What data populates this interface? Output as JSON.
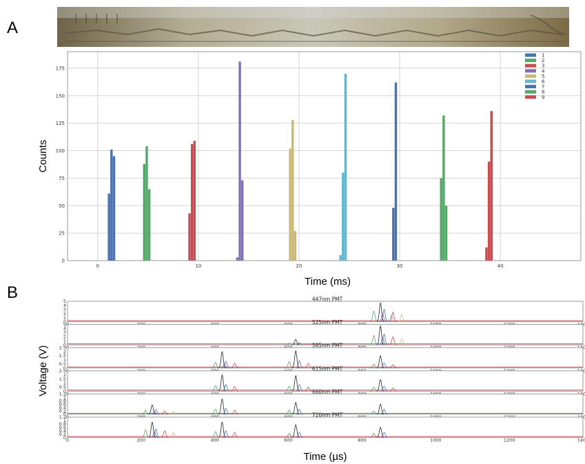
{
  "labels": {
    "panel_a": "A",
    "panel_b": "B"
  },
  "chart_data": [
    {
      "type": "bar",
      "panel": "A",
      "xlabel": "Time (ms)",
      "ylabel": "Counts",
      "xlim": [
        -3,
        48
      ],
      "ylim": [
        0,
        190
      ],
      "xticks": [
        0,
        10,
        20,
        30,
        40
      ],
      "yticks": [
        0,
        25,
        50,
        75,
        100,
        125,
        150,
        175
      ],
      "grid": true,
      "legend_position": "top-right",
      "bin_width": 0.25,
      "series": [
        {
          "name": "1",
          "color": "#4c72b0",
          "x": [
            1.0,
            1.25,
            1.5
          ],
          "values": [
            61,
            101,
            95
          ]
        },
        {
          "name": "2",
          "color": "#55a868",
          "x": [
            4.5,
            4.75,
            5.0
          ],
          "values": [
            88,
            104,
            65
          ]
        },
        {
          "name": "3",
          "color": "#c44e52",
          "x": [
            9.0,
            9.25,
            9.5
          ],
          "values": [
            43,
            106,
            109
          ]
        },
        {
          "name": "4",
          "color": "#8172b2",
          "x": [
            13.75,
            14.0,
            14.25
          ],
          "values": [
            3,
            181,
            73
          ]
        },
        {
          "name": "5",
          "color": "#ccb974",
          "x": [
            19.0,
            19.25,
            19.5
          ],
          "values": [
            102,
            128,
            27
          ]
        },
        {
          "name": "6",
          "color": "#64b5cd",
          "x": [
            24.0,
            24.25,
            24.5
          ],
          "values": [
            5,
            80,
            170
          ]
        },
        {
          "name": "7",
          "color": "#4c72b0",
          "x": [
            29.25,
            29.5
          ],
          "values": [
            48,
            162
          ]
        },
        {
          "name": "8",
          "color": "#55a868",
          "x": [
            34.0,
            34.25,
            34.5
          ],
          "values": [
            75,
            132,
            50
          ]
        },
        {
          "name": "9",
          "color": "#c44e52",
          "x": [
            38.5,
            38.75,
            39.0
          ],
          "values": [
            12,
            90,
            136
          ]
        }
      ]
    },
    {
      "type": "line",
      "panel": "B",
      "xlabel": "Time (µs)",
      "ylabel": "Voltage (V)",
      "xlim": [
        0,
        1400
      ],
      "xticks": [
        0,
        200,
        400,
        600,
        800,
        1000,
        1200,
        1400
      ],
      "series_colors": [
        "#4c72b0",
        "#55a868",
        "#c44e52",
        "#8172b2",
        "#ccb974",
        "#64b5cd",
        "#222222"
      ],
      "subplots": [
        {
          "title": "447nm PMT",
          "ylim": [
            0,
            5
          ],
          "yticks": [
            0,
            1,
            2,
            3,
            4,
            5
          ],
          "groups": [
            {
              "x": 850,
              "peak": 4.6,
              "others": [
                3.0,
                2.6,
                2.3,
                2.0,
                1.8,
                1.6
              ]
            }
          ]
        },
        {
          "title": "525nm PMT",
          "ylim": [
            0,
            5
          ],
          "yticks": [
            0,
            1,
            2,
            3,
            4,
            5
          ],
          "groups": [
            {
              "x": 620,
              "peak": 1.3,
              "others": [
                0.5,
                0.4,
                0.3
              ]
            },
            {
              "x": 850,
              "peak": 4.6,
              "others": [
                2.6,
                2.3,
                2.0,
                1.8,
                1.5
              ]
            }
          ]
        },
        {
          "title": "585nm PMT",
          "ylim": [
            0,
            2.5
          ],
          "yticks": [
            0.0,
            0.5,
            1.0,
            1.5,
            2.0,
            2.5
          ],
          "groups": [
            {
              "x": 420,
              "peak": 2.0,
              "others": [
                0.8,
                0.7,
                0.6,
                0.5
              ]
            },
            {
              "x": 620,
              "peak": 2.1,
              "others": [
                0.9,
                0.8,
                0.6
              ]
            },
            {
              "x": 850,
              "peak": 1.5,
              "others": [
                0.6,
                0.5,
                0.4
              ]
            }
          ]
        },
        {
          "title": "615nm PMT",
          "ylim": [
            0,
            2.5
          ],
          "yticks": [
            0.0,
            0.5,
            1.0,
            1.5,
            2.0,
            2.5
          ],
          "groups": [
            {
              "x": 420,
              "peak": 2.0,
              "others": [
                0.8,
                0.7,
                0.6
              ]
            },
            {
              "x": 620,
              "peak": 1.9,
              "others": [
                0.8,
                0.6,
                0.5
              ]
            },
            {
              "x": 850,
              "peak": 1.4,
              "others": [
                0.6,
                0.5,
                0.4
              ]
            }
          ]
        },
        {
          "title": "660nm PMT",
          "ylim": [
            0,
            1.2
          ],
          "yticks": [
            0.0,
            0.2,
            0.4,
            0.6,
            0.8,
            1.0,
            1.2
          ],
          "groups": [
            {
              "x": 230,
              "peak": 0.55,
              "others": [
                0.3,
                0.25,
                0.2,
                0.18,
                0.15
              ]
            },
            {
              "x": 420,
              "peak": 0.9,
              "others": [
                0.35,
                0.3,
                0.25
              ]
            },
            {
              "x": 620,
              "peak": 0.7,
              "others": [
                0.3,
                0.25
              ]
            },
            {
              "x": 850,
              "peak": 0.6,
              "others": [
                0.3,
                0.2
              ]
            }
          ]
        },
        {
          "title": "720nm PMT",
          "ylim": [
            0,
            1.2
          ],
          "yticks": [
            0.0,
            0.2,
            0.4,
            0.6,
            0.8,
            1.0,
            1.2
          ],
          "groups": [
            {
              "x": 230,
              "peak": 0.9,
              "others": [
                0.5,
                0.45,
                0.4,
                0.35,
                0.3
              ]
            },
            {
              "x": 420,
              "peak": 0.9,
              "others": [
                0.4,
                0.35,
                0.3
              ]
            },
            {
              "x": 620,
              "peak": 0.75,
              "others": [
                0.3,
                0.25
              ]
            },
            {
              "x": 850,
              "peak": 0.6,
              "others": [
                0.3,
                0.25
              ]
            }
          ]
        }
      ]
    }
  ]
}
